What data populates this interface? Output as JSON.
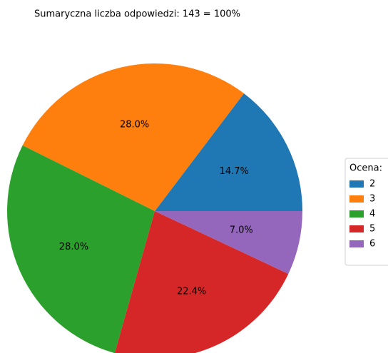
{
  "chart_data": {
    "type": "pie",
    "title": "Sumaryczna liczba odpowiedzi: 143 = 100%",
    "categories": [
      "2",
      "3",
      "4",
      "5",
      "6"
    ],
    "values": [
      14.7,
      28.0,
      28.0,
      22.4,
      7.0
    ],
    "value_labels": [
      "14.7%",
      "28.0%",
      "28.0%",
      "22.4%",
      "7.0%"
    ],
    "colors": [
      "#1f77b4",
      "#ff7f0e",
      "#2ca02c",
      "#d62728",
      "#9467bd"
    ],
    "legend_title": "Ocena:",
    "legend_position": "right"
  }
}
